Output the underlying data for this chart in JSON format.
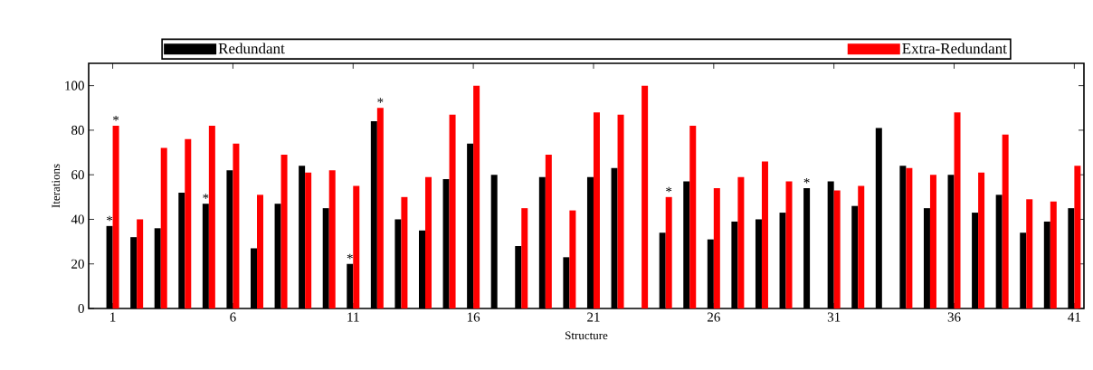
{
  "chart_data": {
    "type": "bar",
    "xlabel": "Structure",
    "ylabel": "Iterations",
    "x": [
      1,
      2,
      3,
      4,
      5,
      6,
      7,
      8,
      9,
      10,
      11,
      12,
      13,
      14,
      15,
      16,
      17,
      18,
      19,
      20,
      21,
      22,
      23,
      24,
      25,
      26,
      27,
      28,
      29,
      30,
      31,
      32,
      33,
      34,
      35,
      36,
      37,
      38,
      39,
      40,
      41
    ],
    "series": [
      {
        "name": "Redundant",
        "color": "#000000",
        "values": [
          37,
          32,
          36,
          52,
          47,
          62,
          27,
          47,
          64,
          45,
          20,
          84,
          40,
          35,
          58,
          74,
          60,
          28,
          59,
          23,
          59,
          63,
          null,
          34,
          57,
          31,
          39,
          40,
          43,
          54,
          57,
          46,
          81,
          64,
          45,
          60,
          43,
          51,
          34,
          39,
          45
        ]
      },
      {
        "name": "Extra-Redundant",
        "color": "#ff0000",
        "values": [
          82,
          40,
          72,
          76,
          82,
          74,
          51,
          69,
          61,
          62,
          55,
          90,
          50,
          59,
          87,
          100,
          null,
          45,
          69,
          44,
          88,
          87,
          100,
          50,
          82,
          54,
          59,
          66,
          57,
          null,
          53,
          55,
          null,
          63,
          60,
          88,
          61,
          78,
          49,
          48,
          64
        ]
      }
    ],
    "xlim": [
      0,
      41.4
    ],
    "xticks": [
      1,
      6,
      11,
      16,
      21,
      26,
      31,
      36,
      41
    ],
    "ylim": [
      0,
      110
    ],
    "yticks": [
      0,
      20,
      40,
      60,
      80,
      100
    ],
    "annotations": [
      {
        "text": "*",
        "x": 1,
        "y": 37
      },
      {
        "text": "*",
        "x": 1,
        "y": 82
      },
      {
        "text": "*",
        "x": 5,
        "y": 47
      },
      {
        "text": "*",
        "x": 11,
        "y": 20
      },
      {
        "text": "*",
        "x": 12,
        "y": 90
      },
      {
        "text": "*",
        "x": 24,
        "y": 50
      },
      {
        "text": "*",
        "x": 30,
        "y": 54
      }
    ],
    "legend": "top",
    "grid": false
  }
}
